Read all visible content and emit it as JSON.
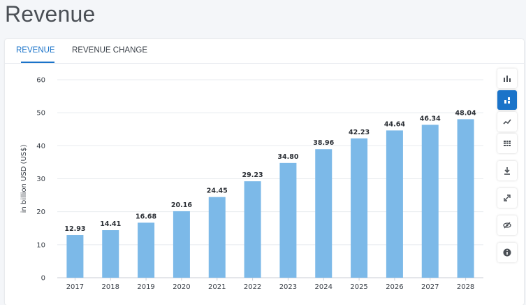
{
  "page": {
    "title": "Revenue"
  },
  "tabs": [
    {
      "label": "REVENUE",
      "active": true
    },
    {
      "label": "REVENUE CHANGE",
      "active": false
    }
  ],
  "toolbar": {
    "items": [
      {
        "icon": "bar-chart-icon",
        "active": false
      },
      {
        "icon": "stacked-bar-icon",
        "active": true
      },
      {
        "icon": "trend-line-icon",
        "active": false
      },
      {
        "icon": "table-grid-icon",
        "active": false
      },
      {
        "icon": "download-icon",
        "active": false
      },
      {
        "icon": "expand-icon",
        "active": false
      },
      {
        "icon": "hide-icon",
        "active": false
      },
      {
        "icon": "info-icon",
        "active": false
      }
    ],
    "accent": "#1a73c9"
  },
  "chart_data": {
    "type": "bar",
    "categories": [
      "2017",
      "2018",
      "2019",
      "2020",
      "2021",
      "2022",
      "2023",
      "2024",
      "2025",
      "2026",
      "2027",
      "2028"
    ],
    "values": [
      12.93,
      14.41,
      16.68,
      20.16,
      24.45,
      29.23,
      34.8,
      38.96,
      42.23,
      44.64,
      46.34,
      48.04
    ],
    "data_labels": [
      "12.93",
      "14.41",
      "16.68",
      "20.16",
      "24.45",
      "29.23",
      "34.80",
      "38.96",
      "42.23",
      "44.64",
      "46.34",
      "48.04"
    ],
    "yticks": [
      "0",
      "10",
      "20",
      "30",
      "40",
      "50",
      "60"
    ],
    "ylabel": "in billion USD  (US$)",
    "xlabel": "",
    "title": "",
    "ylim": [
      0,
      60
    ],
    "grid": true,
    "bar_color": "#7cb9e8"
  }
}
